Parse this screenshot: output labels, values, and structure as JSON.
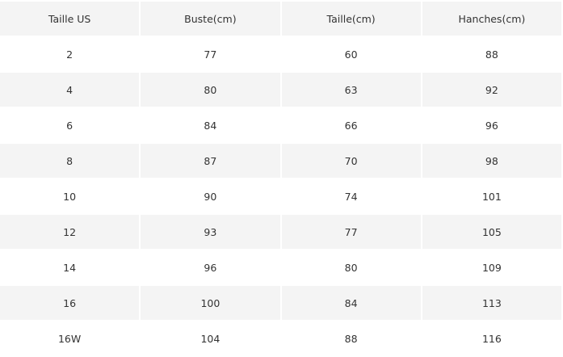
{
  "table": {
    "headers": [
      "Taille US",
      "Buste(cm)",
      "Taille(cm)",
      "Hanches(cm)"
    ],
    "rows": [
      [
        "2",
        "77",
        "60",
        "88"
      ],
      [
        "4",
        "80",
        "63",
        "92"
      ],
      [
        "6",
        "84",
        "66",
        "96"
      ],
      [
        "8",
        "87",
        "70",
        "98"
      ],
      [
        "10",
        "90",
        "74",
        "101"
      ],
      [
        "12",
        "93",
        "77",
        "105"
      ],
      [
        "14",
        "96",
        "80",
        "109"
      ],
      [
        "16",
        "100",
        "84",
        "113"
      ],
      [
        "16W",
        "104",
        "88",
        "116"
      ]
    ]
  },
  "colors": {
    "shaded_row": "#f4f4f4",
    "text": "#333333"
  }
}
